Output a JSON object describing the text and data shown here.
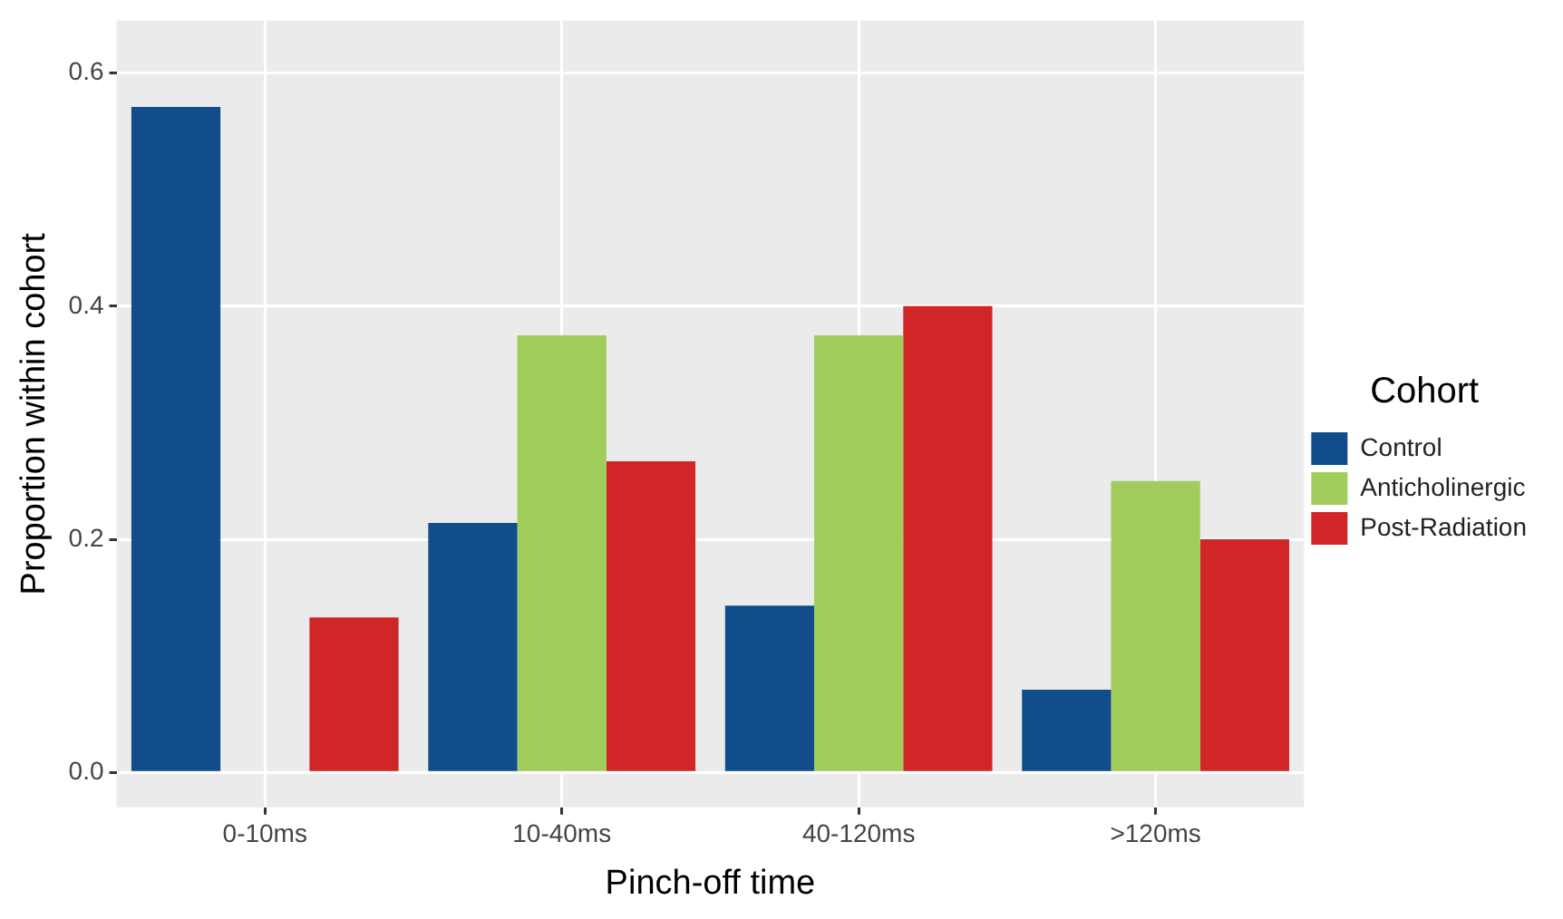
{
  "chart_data": {
    "type": "bar",
    "xlabel": "Pinch-off time",
    "ylabel": "Proportion within cohort",
    "legend_title": "Cohort",
    "legend": "right",
    "categories": [
      "0-10ms",
      "10-40ms",
      "40-120ms",
      ">120ms"
    ],
    "series": [
      {
        "name": "Control",
        "color": "#114d8a",
        "values": [
          0.571,
          0.214,
          0.143,
          0.071
        ]
      },
      {
        "name": "Anticholinergic",
        "color": "#a0cd5b",
        "values": [
          0,
          0.375,
          0.375,
          0.25
        ]
      },
      {
        "name": "Post-Radiation",
        "color": "#d02628",
        "values": [
          0.133,
          0.267,
          0.4,
          0.2
        ]
      }
    ],
    "ylim": [
      -0.03,
      0.645
    ],
    "yticks": [
      {
        "value": 0,
        "label": "0.0"
      },
      {
        "value": 0.2,
        "label": "0.2"
      },
      {
        "value": 0.4,
        "label": "0.4"
      },
      {
        "value": 0.6,
        "label": "0.6"
      }
    ],
    "grid": true
  }
}
